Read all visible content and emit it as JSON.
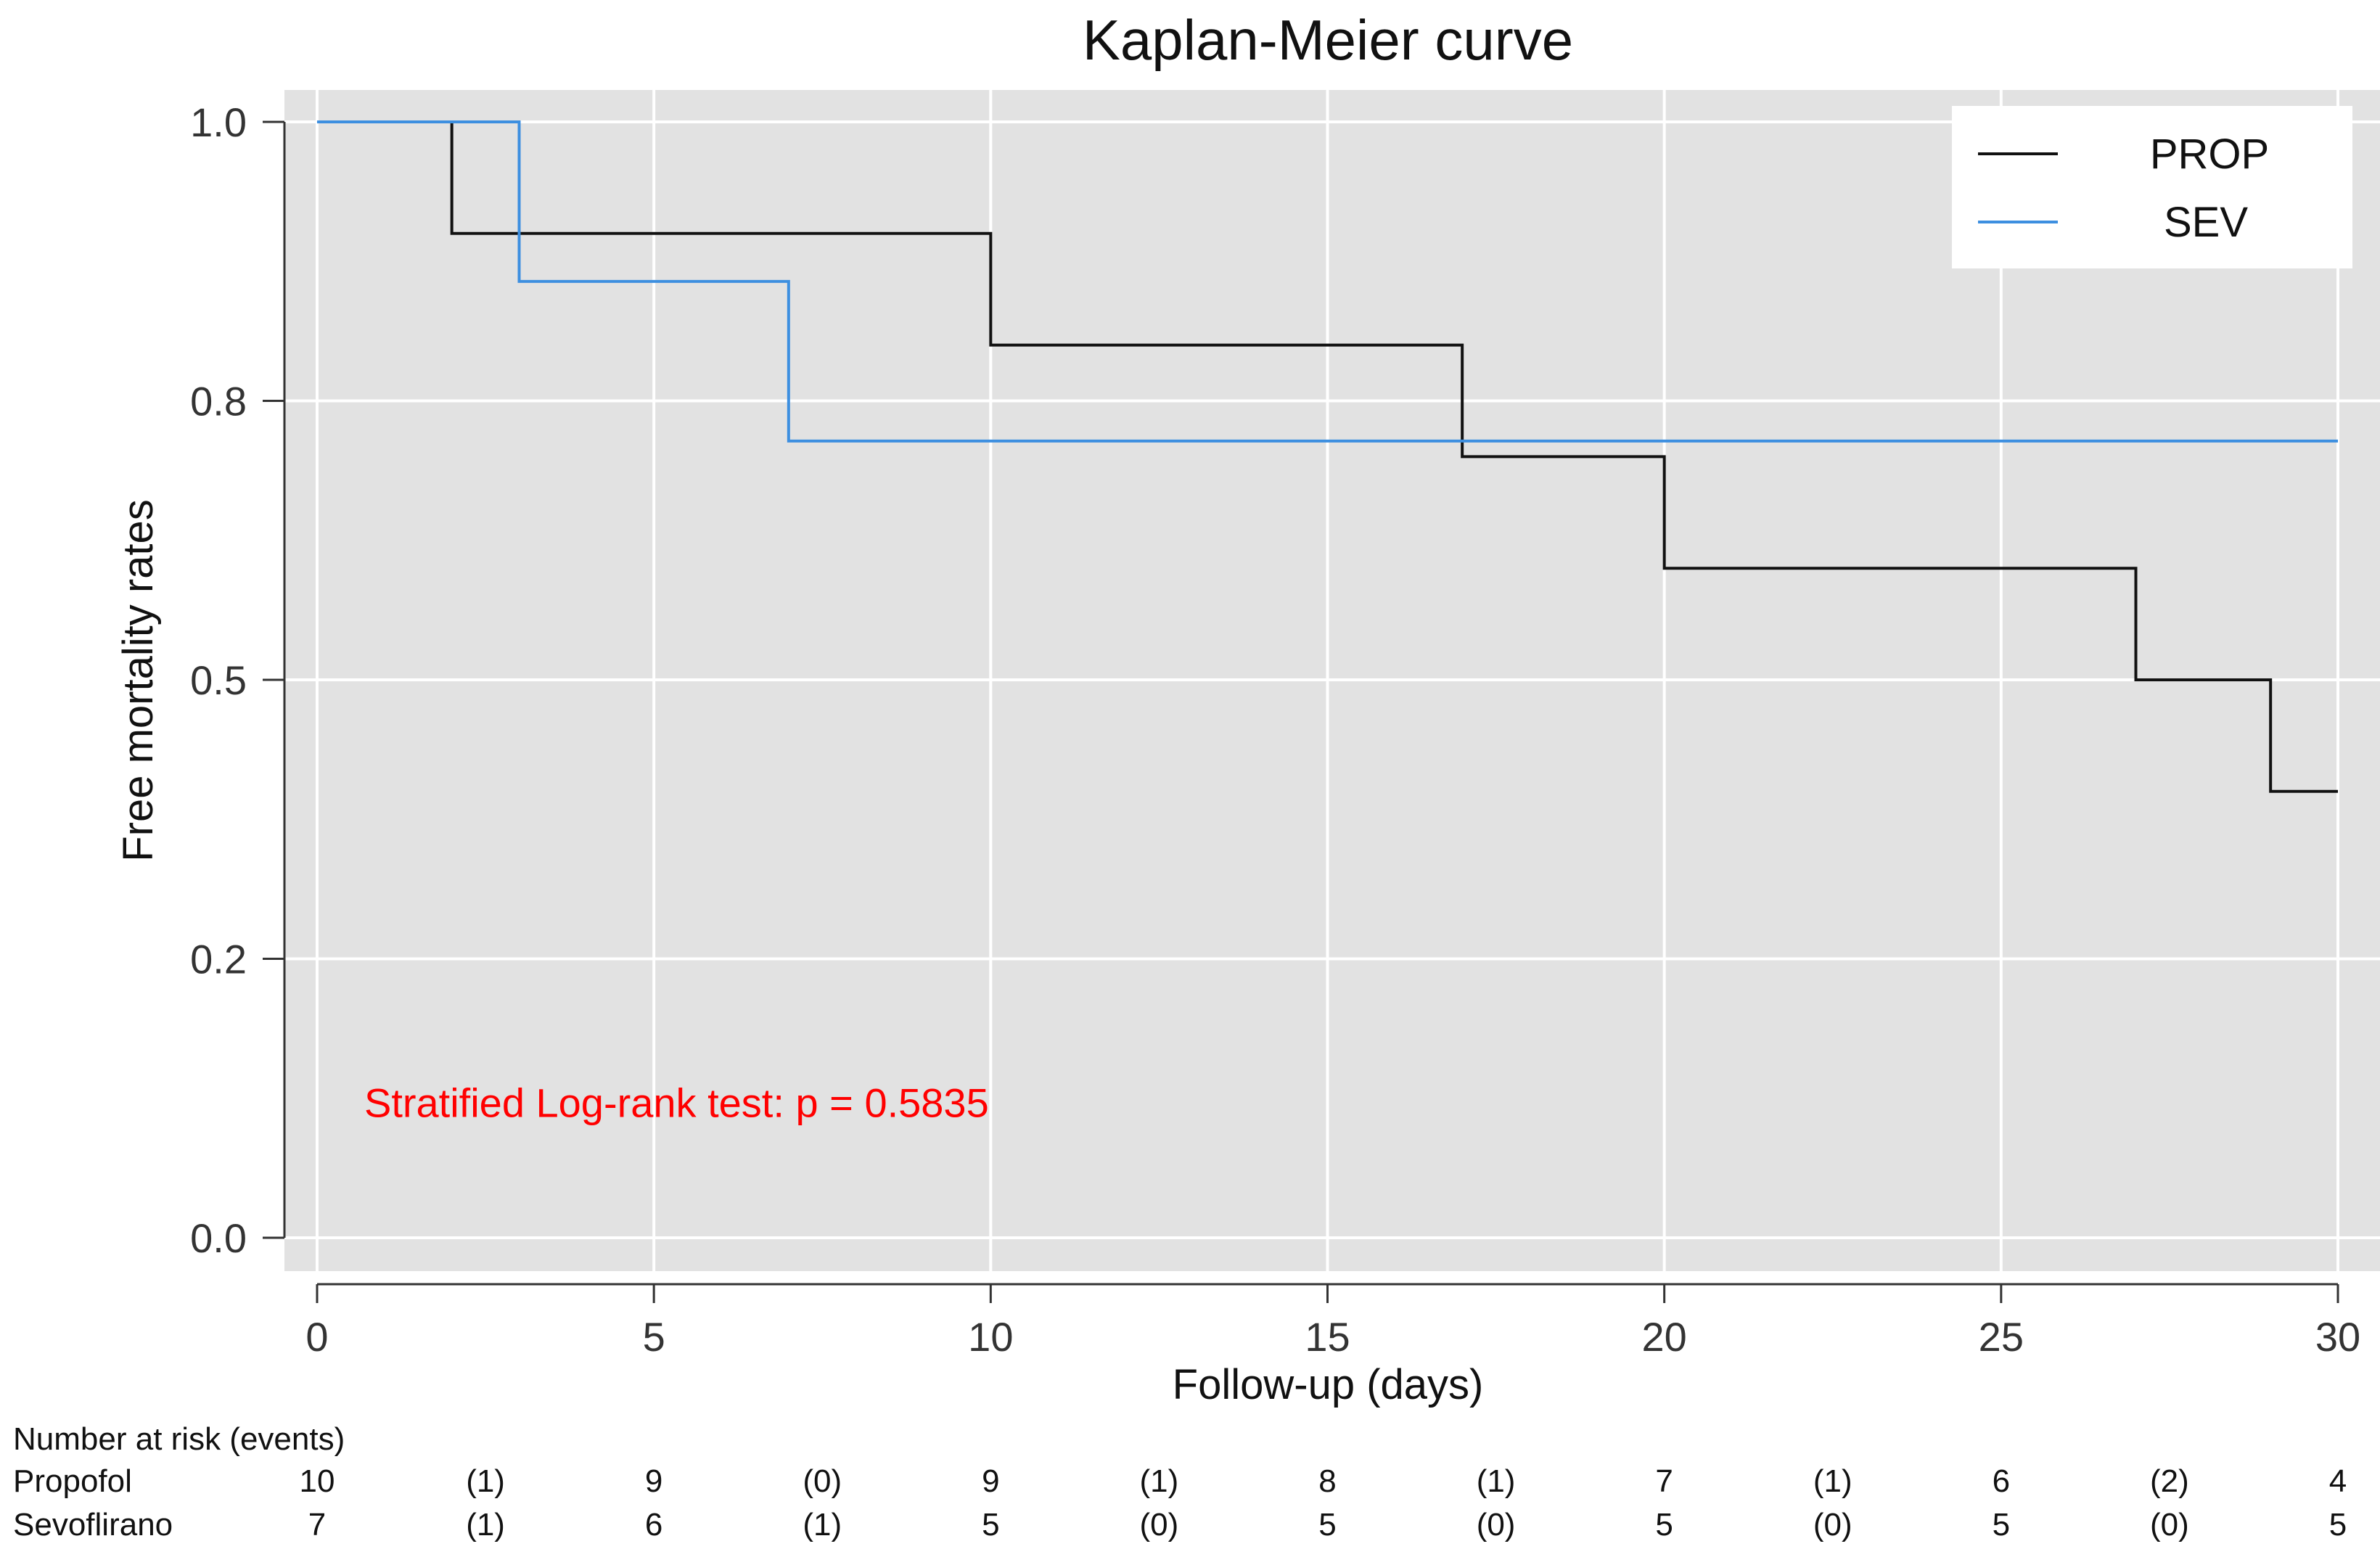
{
  "chart_data": {
    "type": "line",
    "subtype": "kaplan-meier-step",
    "title": "Kaplan-Meier curve",
    "xlabel": "Follow-up (days)",
    "ylabel": "Free mortality rates",
    "xlim": [
      0,
      30
    ],
    "ylim": [
      0,
      1
    ],
    "x_ticks": [
      0,
      5,
      10,
      15,
      20,
      25,
      30
    ],
    "x_tick_labels": [
      "0",
      "5",
      "10",
      "15",
      "20",
      "25",
      "30"
    ],
    "y_ticks": [
      0,
      0.25,
      0.5,
      0.75,
      1.0
    ],
    "y_tick_labels": [
      "0.0",
      "0.2",
      "0.5",
      "0.8",
      "1.0"
    ],
    "grid": true,
    "legend_position": "top-right",
    "series": [
      {
        "name": "PROP",
        "color": "#111111",
        "steps": [
          [
            0,
            1.0
          ],
          [
            2,
            0.9
          ],
          [
            10,
            0.8
          ],
          [
            17,
            0.7
          ],
          [
            20,
            0.6
          ],
          [
            27,
            0.5
          ],
          [
            29,
            0.4
          ],
          [
            30,
            0.4
          ]
        ]
      },
      {
        "name": "SEV",
        "color": "#3d8fe0",
        "steps": [
          [
            0,
            1.0
          ],
          [
            3,
            0.857
          ],
          [
            7,
            0.714
          ],
          [
            30,
            0.714
          ]
        ]
      }
    ],
    "annotation": {
      "text": "Stratified Log-rank test: p = 0.5835",
      "color": "#ff0000",
      "x": 0.7,
      "y": 0.12
    },
    "risk_table": {
      "title": "Number at risk (events)",
      "columns_x": [
        0,
        2.5,
        5,
        7.5,
        10,
        12.5,
        15,
        17.5,
        20,
        22.5,
        25,
        27.5,
        30
      ],
      "rows": [
        {
          "label": "Propofol",
          "values": [
            "10",
            "(1)",
            "9",
            "(0)",
            "9",
            "(1)",
            "8",
            "(1)",
            "7",
            "(1)",
            "6",
            "(2)",
            "4"
          ]
        },
        {
          "label": "Sevoflirano",
          "values": [
            "7",
            "(1)",
            "6",
            "(1)",
            "5",
            "(0)",
            "5",
            "(0)",
            "5",
            "(0)",
            "5",
            "(0)",
            "5"
          ]
        }
      ]
    }
  }
}
